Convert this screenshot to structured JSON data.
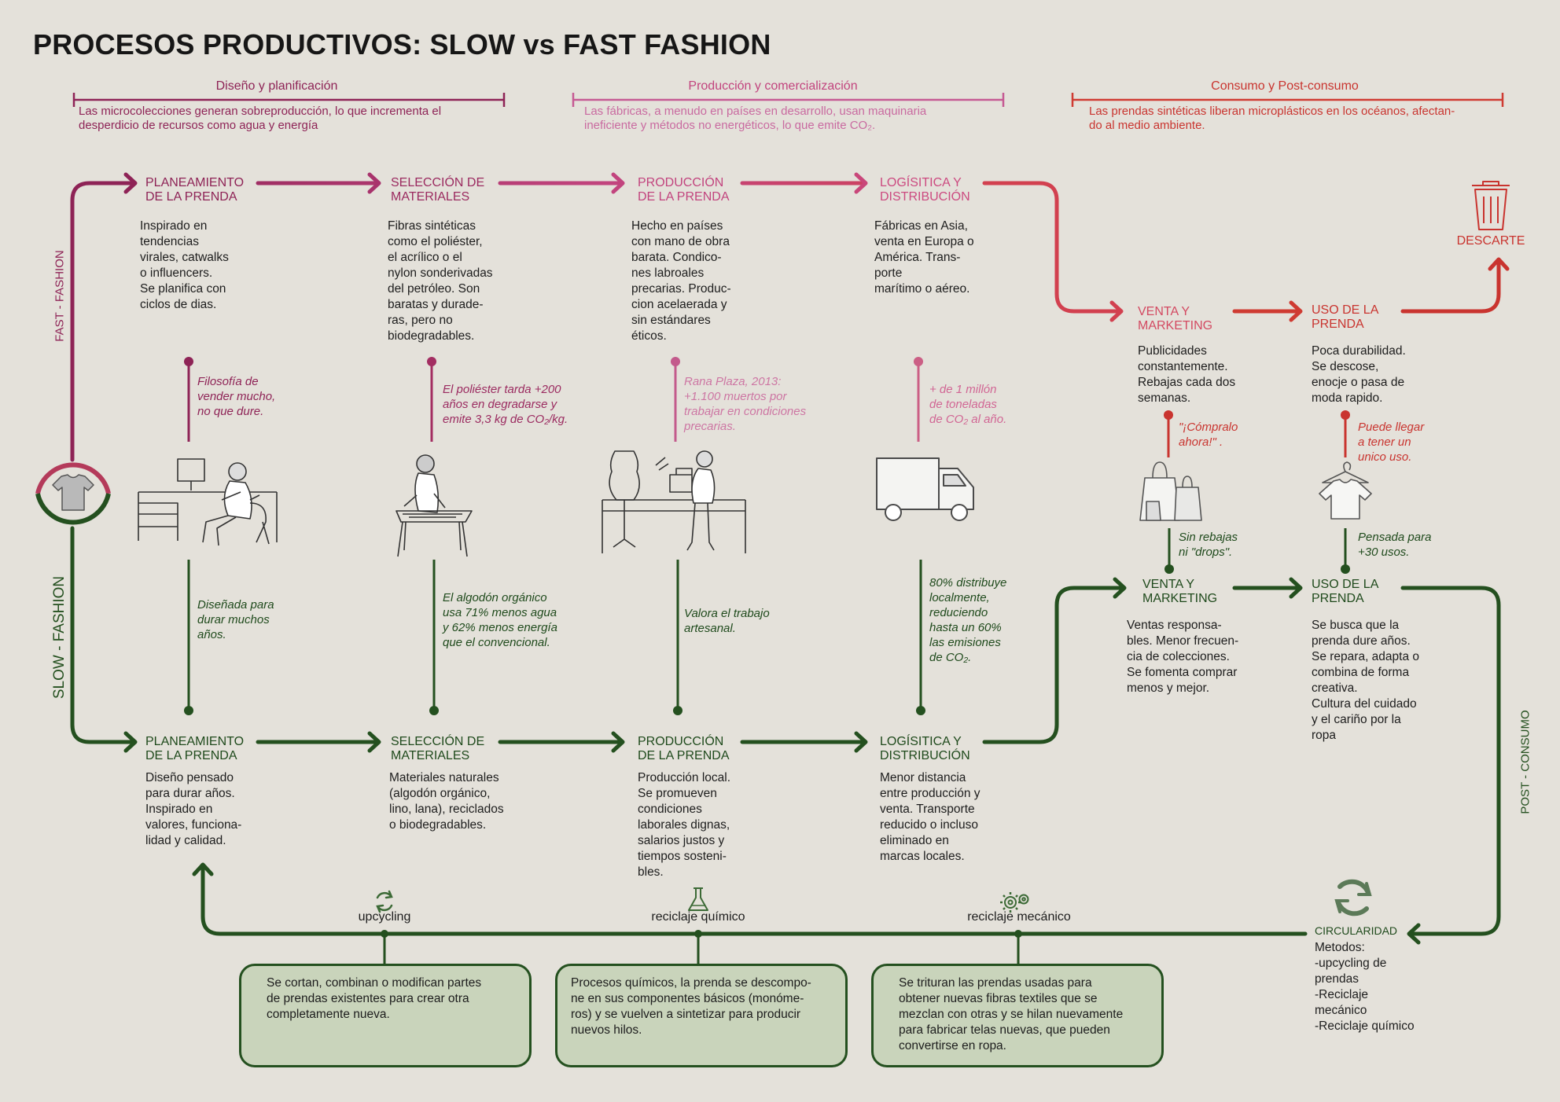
{
  "title": "PROCESOS PRODUCTIVOS: SLOW vs FAST FASHION",
  "colors": {
    "fast_dark": "#8e2356",
    "fast_mid": "#c2447e",
    "fast_red": "#c9342f",
    "slow_green": "#24501f",
    "box_fill": "#c9d4bb",
    "background": "#e4e1da"
  },
  "sections": [
    {
      "heading": "Diseño y planificación",
      "text": "Las microcolecciones generan sobreproducción, lo que incrementa el\ndesperdicio de recursos como agua y energía"
    },
    {
      "heading": "Producción y comercialización",
      "text": "Las fábricas, a menudo en países en desarrollo, usan maquinaria\nineficiente y métodos no energéticos, lo que emite CO₂."
    },
    {
      "heading": "Consumo y Post-consumo",
      "text": "Las prendas sintéticas liberan microplásticos en los océanos, afectan-\ndo al medio ambiente."
    }
  ],
  "side_labels": {
    "fast": "FAST - FASHION",
    "slow": "SLOW - FASHION",
    "post": "POST - CONSUMO"
  },
  "fast": {
    "steps": [
      {
        "title": "PLANEAMIENTO\nDE LA PRENDA",
        "text": "Inspirado en\ntendencias\nvirales, catwalks\no influencers.\nSe planifica con\nciclos de dias.",
        "note": "Filosofía de\nvender mucho,\nno que dure."
      },
      {
        "title": "SELECCIÓN DE\nMATERIALES",
        "text": "Fibras sintéticas\ncomo el poliéster,\nel acrílico o el\nnylon sonderivadas\ndel petróleo. Son\nbaratas y durade-\nras, pero no\nbiodegradables.",
        "note": "El poliéster tarda +200\naños en degradarse y\nemite 3,3 kg de CO₂/kg."
      },
      {
        "title": "PRODUCCIÓN\nDE LA PRENDA",
        "text": "Hecho en países\ncon mano de obra\nbarata. Condico-\nnes labroales\nprecarias. Produc-\ncion acelaerada y\nsin estándares\néticos.",
        "note": "Rana Plaza, 2013:\n+1.100 muertos por\ntrabajar en condiciones\nprecarias."
      },
      {
        "title": "LOGÍSITICA Y\nDISTRIBUCIÓN",
        "text": "Fábricas en Asia,\nventa en Europa o\nAmérica. Trans-\nporte\nmarítimo o aéreo.",
        "note": "+ de 1 millón\nde toneladas\nde CO₂ al año."
      },
      {
        "title": "VENTA Y\nMARKETING",
        "text": "Publicidades\nconstantemente.\nRebajas cada dos\nsemanas.",
        "note": "\"¡Cómpralo\nahora!\" ."
      },
      {
        "title": "USO DE LA\nPRENDA",
        "text": "Poca durabilidad.\nSe descose,\nenocje o pasa de\nmoda rapido.",
        "note": "Puede llegar\na tener un\nunico uso."
      }
    ],
    "discard_label": "DESCARTE"
  },
  "slow": {
    "steps": [
      {
        "title": "PLANEAMIENTO\nDE LA PRENDA",
        "text": "Diseño pensado\npara durar años.\nInspirado en\nvalores, funciona-\nlidad y calidad.",
        "note": "Diseñada para\ndurar muchos\naños."
      },
      {
        "title": "SELECCIÓN DE\nMATERIALES",
        "text": "Materiales naturales\n(algodón orgánico,\nlino, lana), reciclados\no biodegradables.",
        "note": "El algodón orgánico\nusa 71% menos agua\ny 62% menos energía\nque el convencional."
      },
      {
        "title": "PRODUCCIÓN\nDE LA PRENDA",
        "text": "Producción local.\nSe promueven\ncondiciones\nlaborales dignas,\nsalarios justos y\ntiempos sosteni-\nbles.",
        "note": "Valora el trabajo\nartesanal."
      },
      {
        "title": "LOGÍSITICA Y\nDISTRIBUCIÓN",
        "text": "Menor distancia\nentre producción y\nventa. Transporte\nreducido o incluso\neliminado en\nmarcas locales.",
        "note": "80% distribuye\nlocalmente,\nreduciendo\nhasta un 60%\nlas emisiones\nde CO₂."
      },
      {
        "title": "VENTA Y\nMARKETING",
        "text": "Ventas responsa-\nbles. Menor frecuen-\ncia de colecciones.\nSe fomenta comprar\nmenos y mejor.",
        "note": "Sin rebajas\nni \"drops\"."
      },
      {
        "title": "USO DE LA\nPRENDA",
        "text": "Se busca que la\nprenda dure años.\nSe repara, adapta o\ncombina de forma\ncreativa.\nCultura del cuidado\ny el cariño por la\nropa",
        "note": "Pensada para\n+30 usos."
      }
    ]
  },
  "circularity": {
    "title": "CIRCULARIDAD",
    "text": "Metodos:\n-upcycling de\nprendas\n-Reciclaje\nmecánico\n-Reciclaje químico",
    "methods": [
      {
        "label": "upcycling",
        "icon": "recycle-icon",
        "text": "Se cortan, combinan o modifican partes\nde prendas existentes para crear otra\ncompletamente nueva."
      },
      {
        "label": "reciclaje químico",
        "icon": "flask-icon",
        "text": "Procesos químicos, la prenda se descompo-\nne en sus componentes básicos (monóme-\nros) y se vuelven a sintetizar para producir\nnuevos hilos."
      },
      {
        "label": "reciclaje mecánico",
        "icon": "gears-icon",
        "text": "Se trituran las prendas usadas  para\nobtener nuevas fibras textiles que se\nmezclan con otras y se hilan nuevamente\npara fabricar telas nuevas, que pueden\nconvertirse en ropa."
      }
    ]
  }
}
